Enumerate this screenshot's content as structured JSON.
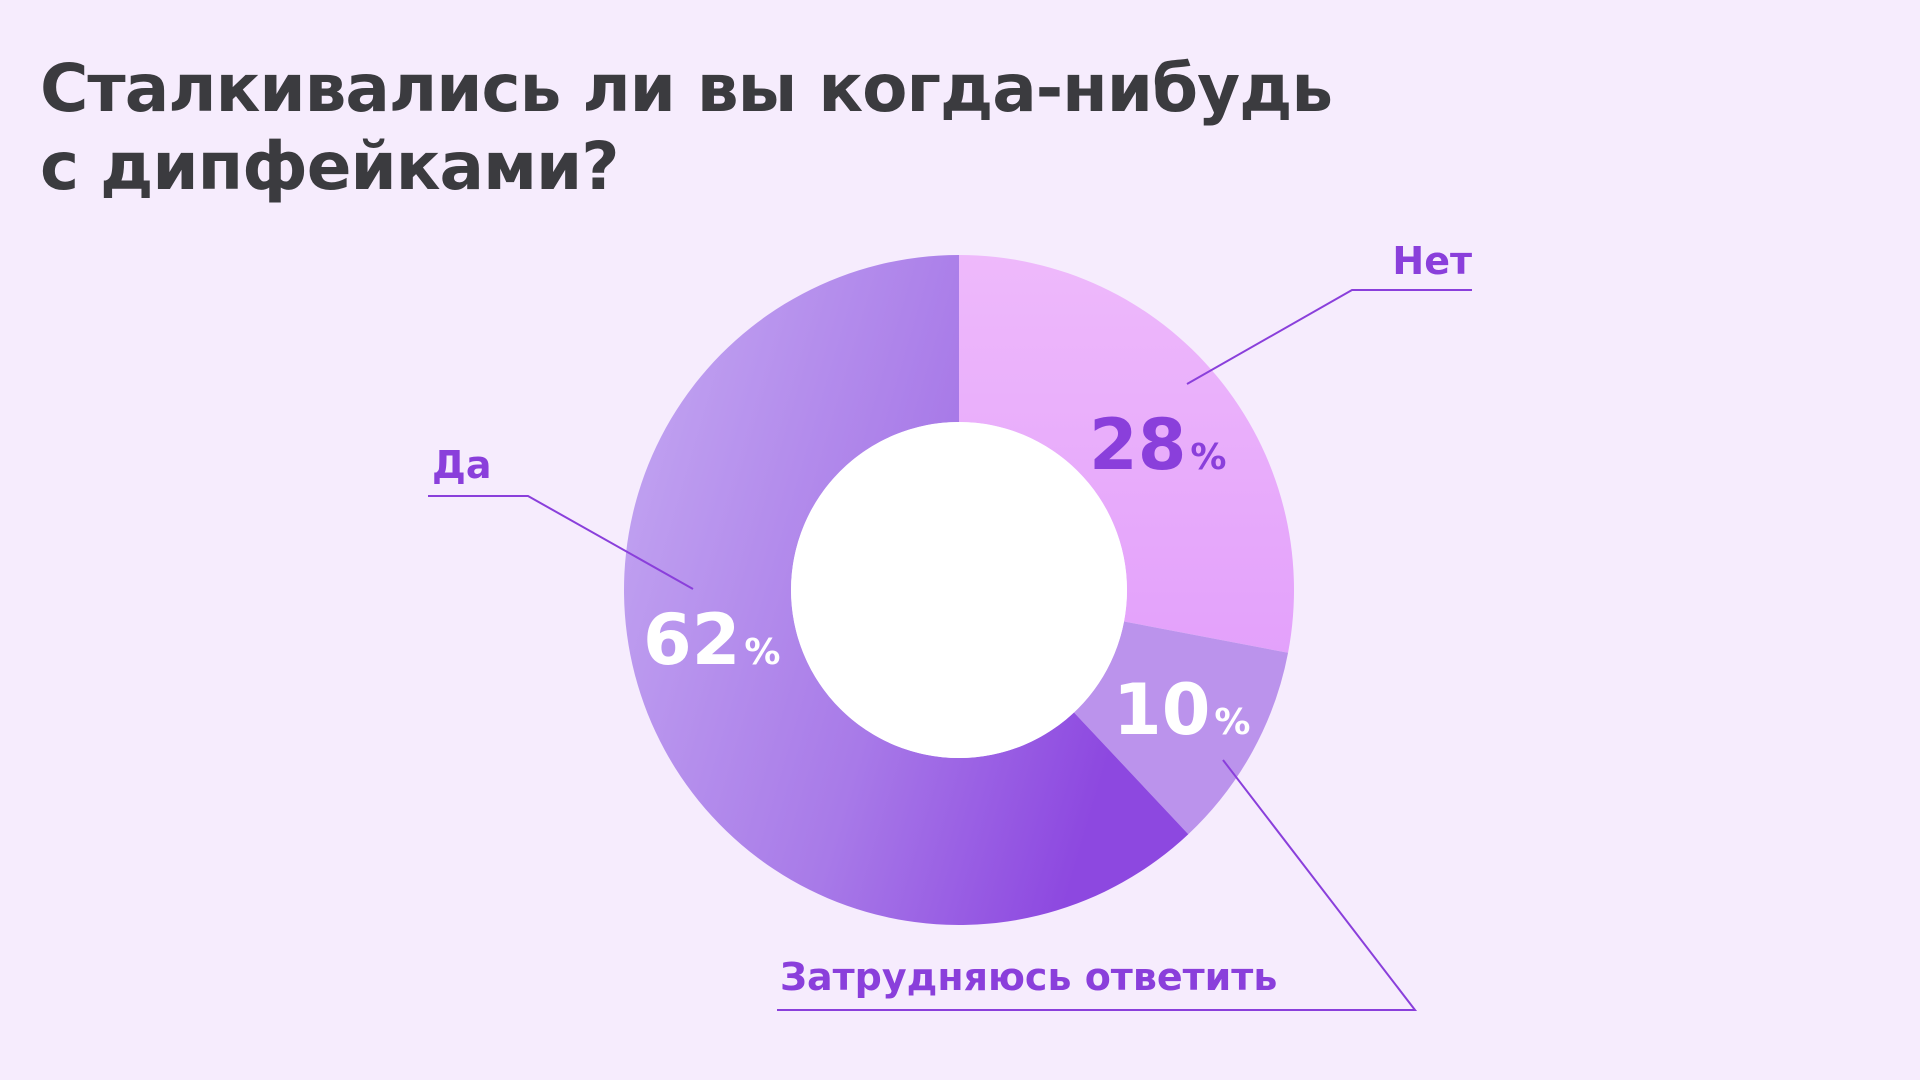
{
  "title": {
    "line1": "Сталкивались ли вы когда-нибудь",
    "line2": "с дипфейками?"
  },
  "chart_data": {
    "type": "pie",
    "variant": "donut",
    "categories": [
      "Нет",
      "Затрудняюсь ответить",
      "Да"
    ],
    "values": [
      28,
      10,
      62
    ],
    "value_labels": [
      "28",
      "10",
      "62"
    ],
    "unit": "%",
    "legend": "callout labels with leader lines",
    "colors": {
      "Нет": [
        "#eeb9fb",
        "#e3a1fb"
      ],
      "Затрудняюсь ответить": [
        "#bb93ec",
        "#bb93ec"
      ],
      "Да": [
        "#c5a9f2",
        "#8d48e0"
      ],
      "label_text": "#8a3fdb",
      "leader_line": "#8a3fdb",
      "pct_dark": "#8a3fdb",
      "pct_light": "#ffffff",
      "background": "#f6ecfd",
      "hole": "#ffffff"
    }
  }
}
